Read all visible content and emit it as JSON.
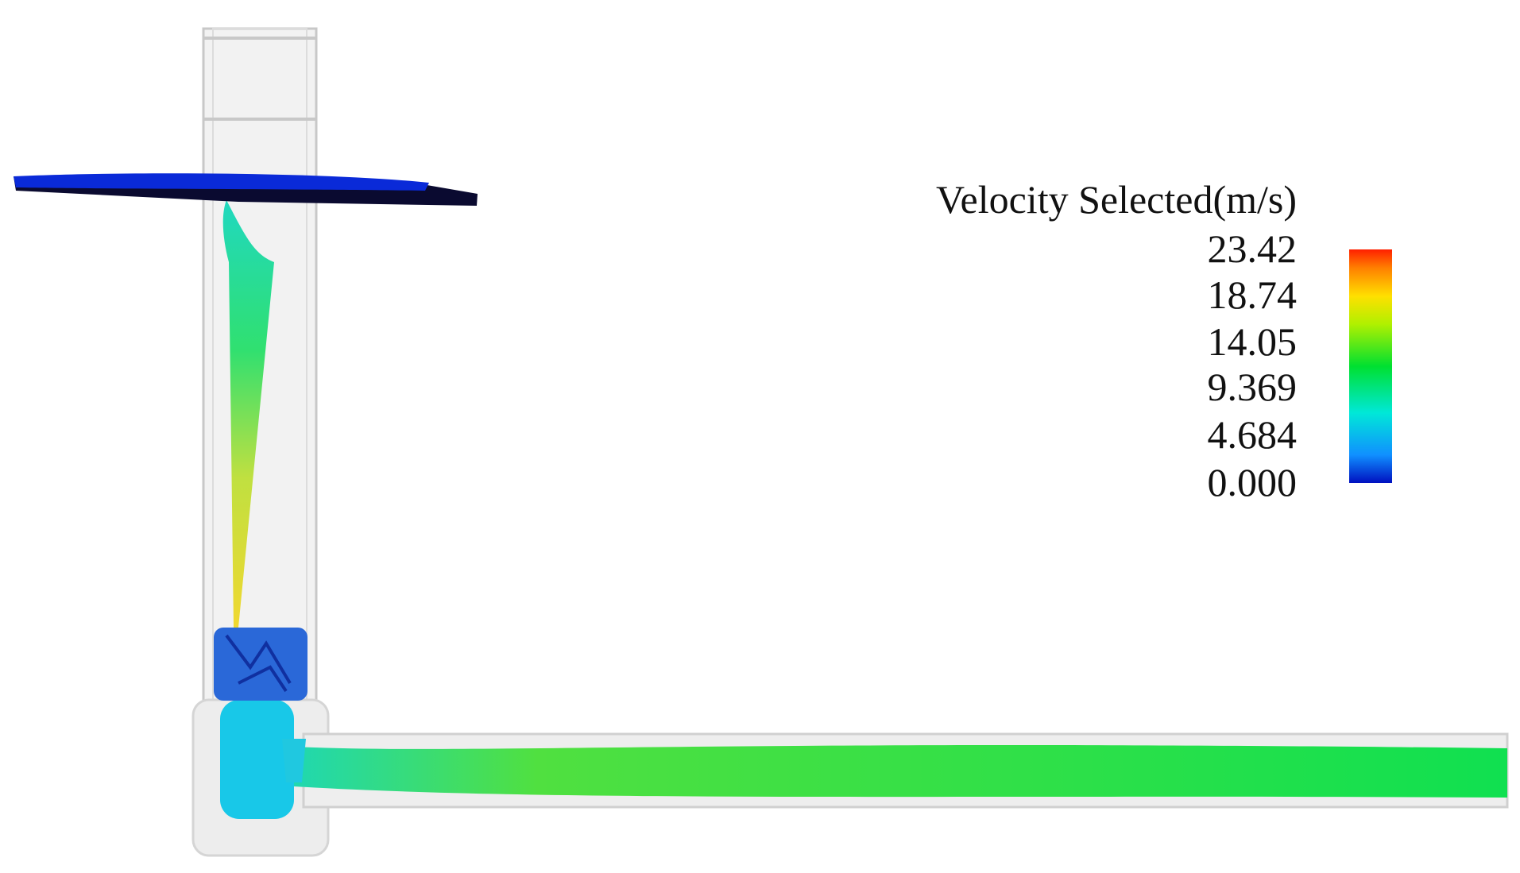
{
  "legend": {
    "title": "Velocity Selected(m/s)",
    "labels": [
      "23.42",
      "18.74",
      "14.05",
      "9.369",
      "4.684",
      "0.000"
    ]
  }
}
